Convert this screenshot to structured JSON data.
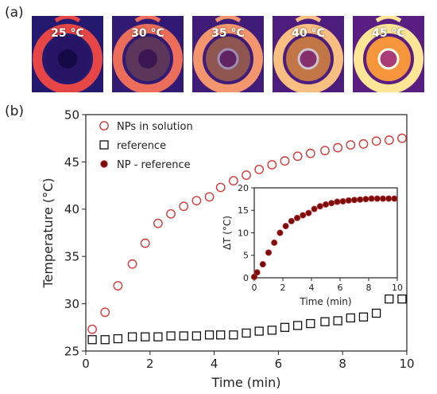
{
  "panel_labels": {
    "a": "(a)",
    "b": "(b)"
  },
  "thermal_images": [
    {
      "label": "25 °C",
      "level": 0.0
    },
    {
      "label": "30 °C",
      "level": 0.25
    },
    {
      "label": "35 °C",
      "level": 0.5
    },
    {
      "label": "40 °C",
      "level": 0.75
    },
    {
      "label": "45 °C",
      "level": 1.0
    }
  ],
  "colors": {
    "solution": "#d43a3a",
    "reference": "#111111",
    "difference_fill": "#7a0c0c",
    "difference_edge": "#b83030",
    "axis": "#222222"
  },
  "chart_data": [
    {
      "type": "scatter",
      "title": "",
      "xlabel": "Time (min)",
      "ylabel": "Temperature (°C)",
      "xlim": [
        0,
        10
      ],
      "ylim": [
        25,
        50
      ],
      "xticks": [
        0,
        2,
        4,
        6,
        8,
        10
      ],
      "yticks": [
        25,
        30,
        35,
        40,
        45,
        50
      ],
      "grid": false,
      "legend_position": "top-left",
      "series": [
        {
          "name": "NPs in solution",
          "marker": "open-circle",
          "x": [
            0.2,
            0.6,
            1.0,
            1.45,
            1.85,
            2.25,
            2.65,
            3.05,
            3.45,
            3.85,
            4.2,
            4.6,
            5.0,
            5.4,
            5.8,
            6.2,
            6.6,
            7.0,
            7.45,
            7.85,
            8.25,
            8.65,
            9.05,
            9.45,
            9.85
          ],
          "y": [
            27.3,
            29.1,
            31.9,
            34.2,
            36.4,
            38.5,
            39.5,
            40.3,
            40.9,
            41.3,
            42.3,
            43.0,
            43.6,
            44.2,
            44.7,
            45.1,
            45.6,
            45.9,
            46.2,
            46.5,
            46.8,
            46.9,
            47.2,
            47.3,
            47.5
          ]
        },
        {
          "name": "reference",
          "marker": "open-square",
          "x": [
            0.2,
            0.6,
            1.0,
            1.45,
            1.85,
            2.25,
            2.65,
            3.05,
            3.45,
            3.85,
            4.2,
            4.6,
            5.0,
            5.4,
            5.8,
            6.2,
            6.6,
            7.0,
            7.45,
            7.85,
            8.25,
            8.65,
            9.05,
            9.45,
            9.85
          ],
          "y": [
            26.2,
            26.2,
            26.3,
            26.5,
            26.5,
            26.5,
            26.6,
            26.6,
            26.6,
            26.7,
            26.7,
            26.7,
            26.9,
            27.1,
            27.2,
            27.5,
            27.7,
            27.9,
            28.1,
            28.2,
            28.5,
            28.6,
            29.0,
            30.5,
            30.5
          ]
        }
      ]
    },
    {
      "type": "scatter",
      "title": "",
      "xlabel": "Time (min)",
      "ylabel": "ΔT (°C)",
      "xlim": [
        0,
        10
      ],
      "ylim": [
        0,
        20
      ],
      "xticks": [
        0,
        2,
        4,
        6,
        8,
        10
      ],
      "yticks": [
        0,
        5,
        10,
        15,
        20
      ],
      "grid": false,
      "legend_position": "none",
      "series": [
        {
          "name": "NP - reference",
          "marker": "filled-circle",
          "x": [
            0.0,
            0.2,
            0.6,
            1.0,
            1.4,
            1.8,
            2.2,
            2.6,
            3.0,
            3.4,
            3.8,
            4.2,
            4.6,
            5.0,
            5.4,
            5.8,
            6.2,
            6.6,
            7.0,
            7.4,
            7.8,
            8.2,
            8.6,
            9.0,
            9.4,
            9.8
          ],
          "y": [
            0.2,
            1.2,
            3.0,
            5.6,
            7.8,
            10.0,
            11.5,
            12.6,
            13.3,
            13.9,
            14.4,
            15.3,
            15.9,
            16.3,
            16.6,
            16.9,
            17.0,
            17.2,
            17.3,
            17.4,
            17.5,
            17.6,
            17.6,
            17.6,
            17.6,
            17.6
          ]
        }
      ]
    }
  ]
}
